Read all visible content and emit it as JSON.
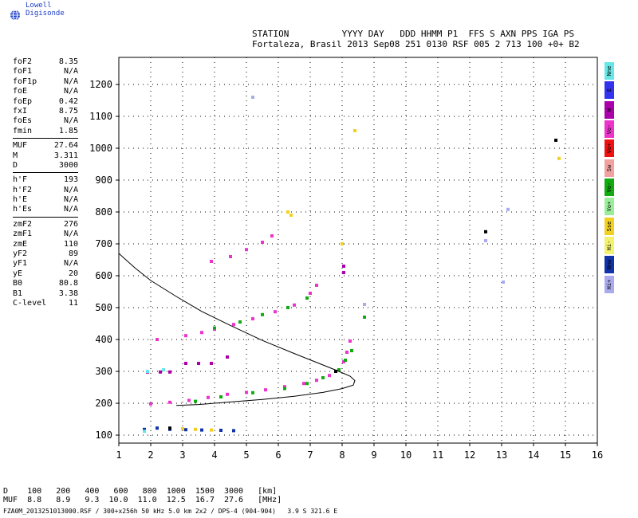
{
  "brand": {
    "name": "Lowell Digisonde",
    "icon": "globe-icon"
  },
  "header": {
    "line1": "STATION          YYYY DAY   DDD HHMM P1  FFS S AXN PPS IGA PS",
    "line2": "Fortaleza, Brasil 2013 Sep08 251 0130 RSF 005 2 713 100 +0+ B2"
  },
  "params": [
    {
      "group": [
        [
          "foF2",
          "8.35"
        ],
        [
          "foF1",
          "N/A"
        ],
        [
          "foF1p",
          "N/A"
        ],
        [
          "foE",
          "N/A"
        ],
        [
          "foEp",
          "0.42"
        ],
        [
          "fxI",
          "8.75"
        ],
        [
          "foEs",
          "N/A"
        ],
        [
          "fmin",
          "1.85"
        ]
      ]
    },
    {
      "group": [
        [
          "MUF",
          "27.64"
        ],
        [
          "M",
          "3.311"
        ],
        [
          "D",
          "3000"
        ]
      ]
    },
    {
      "group": [
        [
          "h'F",
          "193"
        ],
        [
          "h'F2",
          "N/A"
        ],
        [
          "h'E",
          "N/A"
        ],
        [
          "h'Es",
          "N/A"
        ]
      ]
    },
    {
      "group": [
        [
          "zmF2",
          "276"
        ],
        [
          "zmF1",
          "N/A"
        ],
        [
          "zmE",
          "110"
        ],
        [
          "yF2",
          "89"
        ],
        [
          "yF1",
          "N/A"
        ],
        [
          "yE",
          "20"
        ],
        [
          "B0",
          "80.8"
        ],
        [
          "B1",
          "3.38"
        ],
        [
          "C-level",
          "11"
        ]
      ]
    }
  ],
  "legend": [
    {
      "label": "Nne",
      "color": "#66e6e6"
    },
    {
      "label": "E",
      "color": "#3333ee"
    },
    {
      "label": "W",
      "color": "#aa00aa"
    },
    {
      "label": "Vo-",
      "color": "#ee33cc"
    },
    {
      "label": "Vo+",
      "color": "#ee1111"
    },
    {
      "label": "Sw",
      "color": "#f2a0a0"
    },
    {
      "label": "Vo-",
      "color": "#11aa11"
    },
    {
      "label": "Vo+",
      "color": "#99ee99"
    },
    {
      "label": "Sse",
      "color": "#f2d020"
    },
    {
      "label": "Hi-",
      "color": "#f2f26e"
    },
    {
      "label": "Nnw",
      "color": "#1133aa"
    },
    {
      "label": "Hi+",
      "color": "#aaaaee"
    }
  ],
  "footer": {
    "d_line": "D    100   200   400   600   800  1000  1500  3000   [km]",
    "muf_line": "MUF  8.8   8.9   9.3  10.0  11.0  12.5  16.7  27.6   [MHz]",
    "file_line": "FZA0M_2013251013000.RSF / 300+x256h 50 kHz 5.0 km 2x2 / DPS-4 (904-904)   3.9 S 321.6 E"
  },
  "chart_data": {
    "type": "scatter",
    "xlim": [
      1,
      16
    ],
    "ylim": [
      75,
      1285
    ],
    "x_ticks": [
      1,
      2,
      3,
      4,
      5,
      6,
      7,
      8,
      9,
      10,
      11,
      12,
      13,
      14,
      15,
      16
    ],
    "y_ticks": [
      100,
      200,
      300,
      400,
      500,
      600,
      700,
      800,
      900,
      1000,
      1100,
      1200
    ],
    "grid": "dotted",
    "series": [
      {
        "color": "#ee33cc",
        "points": [
          [
            2.0,
            198
          ],
          [
            2.6,
            203
          ],
          [
            3.2,
            209
          ],
          [
            3.8,
            218
          ],
          [
            4.4,
            228
          ],
          [
            5.0,
            234
          ],
          [
            5.6,
            242
          ],
          [
            6.2,
            252
          ],
          [
            6.8,
            262
          ],
          [
            7.2,
            272
          ],
          [
            7.6,
            287
          ],
          [
            7.9,
            305
          ],
          [
            8.05,
            330
          ],
          [
            8.15,
            360
          ],
          [
            8.25,
            395
          ]
        ]
      },
      {
        "color": "#11aa11",
        "points": [
          [
            3.4,
            206
          ],
          [
            4.2,
            220
          ],
          [
            5.2,
            233
          ],
          [
            6.2,
            246
          ],
          [
            6.9,
            262
          ],
          [
            7.4,
            280
          ],
          [
            7.9,
            305
          ],
          [
            8.1,
            335
          ],
          [
            8.3,
            365
          ],
          [
            8.7,
            470
          ]
        ]
      },
      {
        "color": "#ee33cc",
        "points": [
          [
            2.2,
            400
          ],
          [
            3.1,
            412
          ],
          [
            3.6,
            422
          ],
          [
            4.0,
            432
          ],
          [
            4.6,
            447
          ],
          [
            5.2,
            465
          ],
          [
            5.9,
            487
          ],
          [
            6.5,
            508
          ],
          [
            7.0,
            545
          ],
          [
            7.2,
            570
          ]
        ]
      },
      {
        "color": "#11aa11",
        "points": [
          [
            4.0,
            436
          ],
          [
            4.8,
            455
          ],
          [
            5.5,
            478
          ],
          [
            6.3,
            500
          ],
          [
            6.9,
            530
          ]
        ]
      },
      {
        "color": "#ee33cc",
        "points": [
          [
            3.9,
            645
          ],
          [
            4.5,
            660
          ],
          [
            5.0,
            682
          ],
          [
            5.5,
            705
          ],
          [
            5.8,
            725
          ]
        ]
      },
      {
        "color": "#1133aa",
        "points": [
          [
            1.8,
            118
          ],
          [
            2.2,
            122
          ],
          [
            2.6,
            118
          ],
          [
            3.1,
            117
          ],
          [
            3.6,
            116
          ],
          [
            4.2,
            115
          ],
          [
            4.6,
            114
          ]
        ]
      },
      {
        "color": "#f2d020",
        "points": [
          [
            3.0,
            120
          ],
          [
            3.4,
            118
          ],
          [
            3.9,
            116
          ],
          [
            6.3,
            800
          ],
          [
            6.4,
            790
          ],
          [
            8.0,
            700
          ],
          [
            8.4,
            1055
          ],
          [
            14.8,
            968
          ]
        ]
      },
      {
        "color": "#aa00aa",
        "points": [
          [
            1.9,
            298
          ],
          [
            2.3,
            298
          ],
          [
            2.6,
            298
          ],
          [
            3.1,
            325
          ],
          [
            3.5,
            325
          ],
          [
            3.9,
            325
          ],
          [
            4.4,
            345
          ],
          [
            8.05,
            610
          ],
          [
            8.05,
            630
          ]
        ]
      },
      {
        "color": "#000000",
        "points": [
          [
            12.5,
            738
          ],
          [
            14.7,
            1025
          ],
          [
            7.8,
            300
          ],
          [
            2.6,
            122
          ]
        ]
      },
      {
        "color": "#aaaaee",
        "points": [
          [
            12.5,
            710
          ],
          [
            13.05,
            580
          ],
          [
            13.2,
            808
          ],
          [
            5.2,
            1160
          ],
          [
            8.7,
            510
          ]
        ]
      },
      {
        "color": "#66e6e6",
        "points": [
          [
            1.9,
            300
          ],
          [
            2.4,
            305
          ],
          [
            1.8,
            112
          ]
        ]
      }
    ],
    "profile_curve": [
      [
        1.0,
        670
      ],
      [
        1.5,
        625
      ],
      [
        2.0,
        585
      ],
      [
        2.8,
        535
      ],
      [
        3.6,
        488
      ],
      [
        4.5,
        444
      ],
      [
        5.5,
        397
      ],
      [
        6.5,
        356
      ],
      [
        7.3,
        324
      ],
      [
        7.9,
        300
      ],
      [
        8.25,
        285
      ],
      [
        8.4,
        271
      ],
      [
        8.35,
        257
      ],
      [
        8.0,
        246
      ],
      [
        7.4,
        234
      ],
      [
        6.5,
        222
      ],
      [
        5.5,
        212
      ],
      [
        4.5,
        204
      ],
      [
        3.5,
        196
      ],
      [
        2.8,
        193
      ]
    ]
  }
}
